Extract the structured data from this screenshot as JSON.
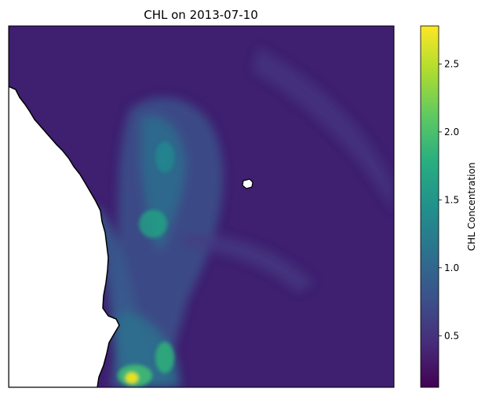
{
  "figure": {
    "title": "CHL on 2013-07-10"
  },
  "colorbar": {
    "label": "CHL Concentration",
    "min": 0.12,
    "max": 2.78,
    "colormap": "viridis",
    "ticks": [
      0.5,
      1.0,
      1.5,
      2.0,
      2.5
    ],
    "tick_labels": [
      "0.5",
      "1.0",
      "1.5",
      "2.0",
      "2.5"
    ]
  },
  "map": {
    "land_color": "#ffffff",
    "coastline_color": "#000000",
    "background_level": 0.25
  }
}
